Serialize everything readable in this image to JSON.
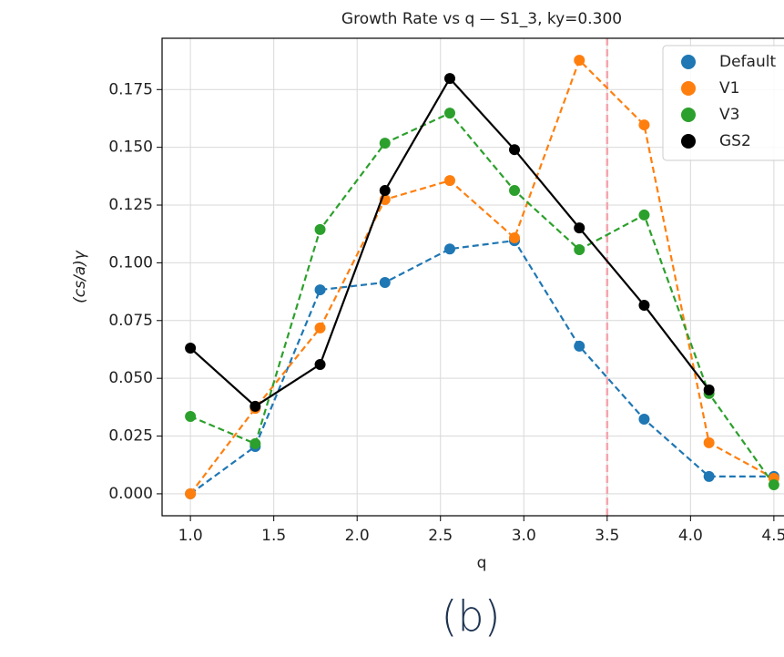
{
  "chart_data": {
    "type": "line",
    "title": "Growth Rate vs q — S1_3, ky=0.300",
    "xlabel": "q",
    "ylabel": "(cs/a)γ",
    "caption": "(b)",
    "x": [
      1.0,
      1.389,
      1.778,
      2.167,
      2.556,
      2.944,
      3.333,
      3.722,
      4.111,
      4.5
    ],
    "series": [
      {
        "name": "Default",
        "color": "#1f77b4",
        "linestyle": "dashed",
        "values": [
          0.0,
          0.0205,
          0.0883,
          0.0915,
          0.106,
          0.1096,
          0.0639,
          0.0323,
          0.0075,
          0.0075
        ]
      },
      {
        "name": "V1",
        "color": "#ff7f0e",
        "linestyle": "dashed",
        "values": [
          0.0,
          0.037,
          0.0718,
          0.1274,
          0.1356,
          0.1108,
          0.1877,
          0.1597,
          0.0221,
          0.0067
        ]
      },
      {
        "name": "V3",
        "color": "#2ca02c",
        "linestyle": "dashed",
        "values": [
          0.0335,
          0.0217,
          0.1144,
          0.1518,
          0.1648,
          0.1313,
          0.1057,
          0.1207,
          0.0434,
          0.0039
        ]
      },
      {
        "name": "GS2",
        "color": "#000000",
        "linestyle": "solid",
        "values": [
          0.0631,
          0.0379,
          0.056,
          0.1313,
          0.1798,
          0.149,
          0.1151,
          0.0816,
          0.045,
          null
        ]
      }
    ],
    "vline": {
      "x": 3.5,
      "color": "#f4a6ae"
    },
    "xlim": [
      0.83,
      4.67
    ],
    "ylim": [
      -0.0095,
      0.1972
    ],
    "xticks": [
      {
        "value": 1.0,
        "label": "1.0"
      },
      1.5,
      {
        "value": 2.0,
        "label": "2.0"
      },
      2.5,
      {
        "value": 3.0,
        "label": "3.0"
      },
      3.5,
      {
        "value": 4.0,
        "label": "4.0"
      },
      4.5
    ],
    "yticks": [
      {
        "value": 0,
        "label": "0.000"
      },
      {
        "value": 0.025,
        "label": "0.025"
      },
      {
        "value": 0.05,
        "label": "0.050"
      },
      {
        "value": 0.075,
        "label": "0.075"
      },
      {
        "value": 0.1,
        "label": "0.100"
      },
      {
        "value": 0.125,
        "label": "0.125"
      },
      {
        "value": 0.15,
        "label": "0.150"
      },
      {
        "value": 0.175,
        "label": "0.175"
      }
    ],
    "grid": true,
    "legend": "upper right"
  }
}
